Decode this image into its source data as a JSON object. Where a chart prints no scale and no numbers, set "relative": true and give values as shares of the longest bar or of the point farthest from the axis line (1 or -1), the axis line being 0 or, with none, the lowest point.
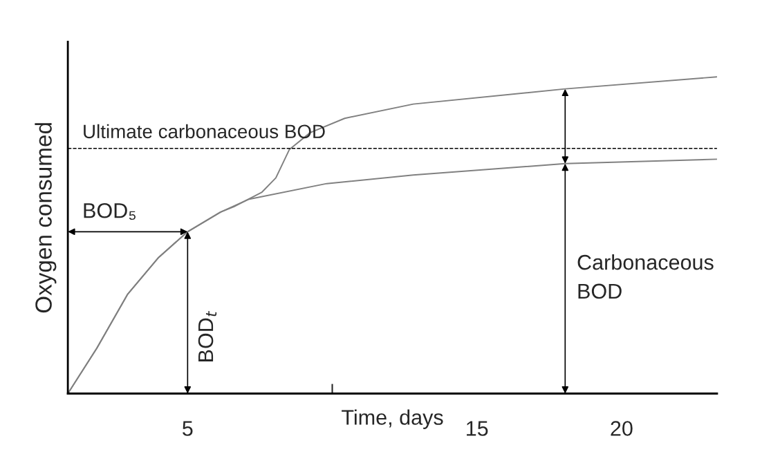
{
  "chart_data": {
    "type": "line",
    "relative": true,
    "xlabel": "Time, days",
    "ylabel": "Oxygen consumed",
    "xlim": [
      0.86,
      23.3
    ],
    "xticks": [
      5,
      {
        "value": 10,
        "label": null
      },
      15,
      20
    ],
    "series": [
      {
        "color": "#808080",
        "x": [
          0.86,
          1.86,
          2.93,
          4.0,
          5.0,
          6.14,
          6.6,
          7.57,
          8.05,
          8.52,
          9.24,
          10.43,
          12.8,
          18.05,
          23.29
        ],
        "values": [
          0,
          0.143,
          0.314,
          0.43,
          0.511,
          0.573,
          0.59,
          0.636,
          0.681,
          0.771,
          0.824,
          0.869,
          0.914,
          0.962,
          1.0
        ]
      },
      {
        "color": "#808080",
        "x": [
          0.86,
          1.86,
          2.93,
          4.0,
          5.0,
          6.14,
          7.1,
          9.81,
          12.8,
          18.05,
          23.29
        ],
        "values": [
          0,
          0.143,
          0.314,
          0.43,
          0.511,
          0.573,
          0.613,
          0.663,
          0.69,
          0.726,
          0.74
        ]
      }
    ],
    "ref_lines": [
      {
        "axis": "y",
        "value": 0.774,
        "label": "Ultimate carbonaceous BOD",
        "line_style": "dashed",
        "color": "#000000"
      }
    ],
    "annotations": [
      "BOD₅",
      "BOD$_{t}$",
      "Carbonaceous BOD"
    ],
    "grid": false,
    "legend": false,
    "marker": "none",
    "line_style": "solid"
  }
}
